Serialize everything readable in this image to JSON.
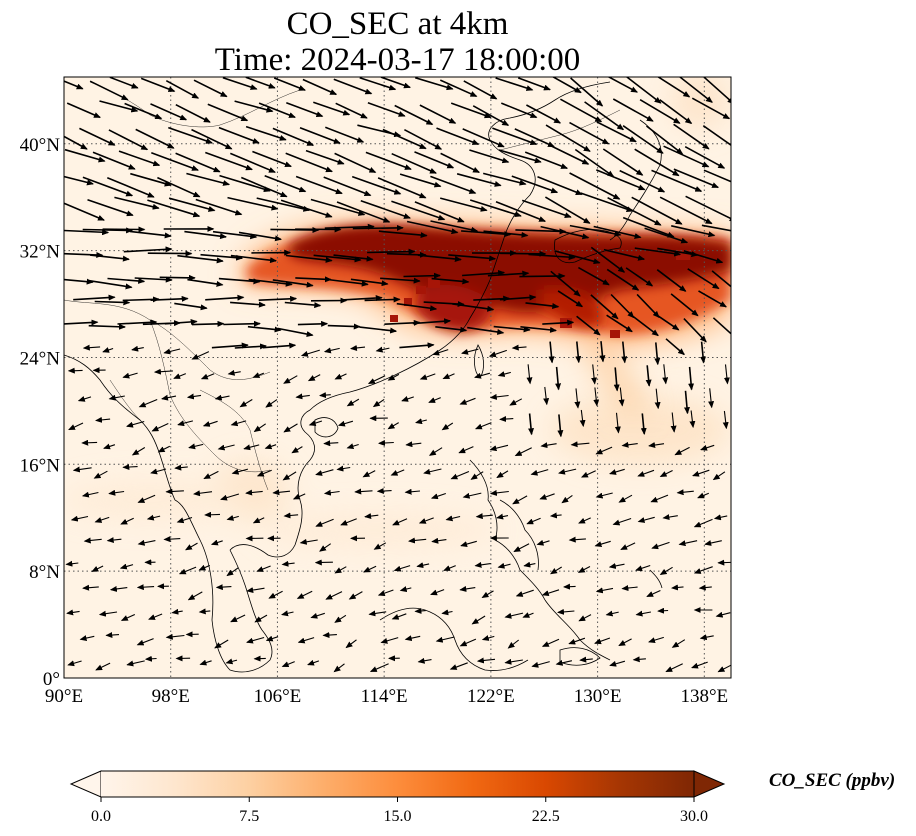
{
  "title": {
    "line1": "CO_SEC at 4km",
    "line2": "Time: 2024-03-17 18:00:00"
  },
  "map": {
    "lon_range": [
      90,
      140
    ],
    "lat_range": [
      0,
      45
    ],
    "lon_ticks": [
      {
        "value": 90,
        "label": "90°E"
      },
      {
        "value": 98,
        "label": "98°E"
      },
      {
        "value": 106,
        "label": "106°E"
      },
      {
        "value": 114,
        "label": "114°E"
      },
      {
        "value": 122,
        "label": "122°E"
      },
      {
        "value": 130,
        "label": "130°E"
      },
      {
        "value": 138,
        "label": "138°E"
      }
    ],
    "lat_ticks": [
      {
        "value": 0,
        "label": "0°"
      },
      {
        "value": 8,
        "label": "8°N"
      },
      {
        "value": 16,
        "label": "16°N"
      },
      {
        "value": 24,
        "label": "24°N"
      },
      {
        "value": 32,
        "label": "32°N"
      },
      {
        "value": 40,
        "label": "40°N"
      }
    ],
    "gridlines": "dotted",
    "field": "CO_SEC",
    "plume_core_lat_range": [
      27,
      34
    ],
    "plume_core_lon_range": [
      106,
      140
    ],
    "wind_vectors": "westerly jet north of 24°N, weak easterlies to the south"
  },
  "colorbar": {
    "label": "CO_SEC (ppbv)",
    "min": 0.0,
    "max": 30.0,
    "extend": "both",
    "ticks": [
      "0.0",
      "7.5",
      "15.0",
      "22.5",
      "30.0"
    ],
    "colors": [
      "#fff5eb",
      "#fee6ce",
      "#fdd0a2",
      "#fdae6b",
      "#fd8d3c",
      "#f16913",
      "#d94801",
      "#a63603",
      "#7f2704"
    ]
  }
}
